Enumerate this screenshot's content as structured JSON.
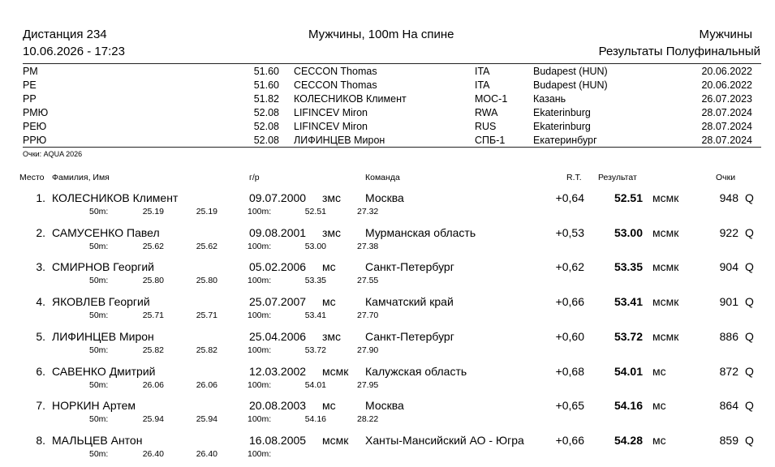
{
  "header": {
    "event": "Дистанция 234",
    "datetime": "10.06.2026 - 17:23",
    "title": "Мужчины, 100m На спине",
    "gender": "Мужчины",
    "round": "Результаты Полуфинальный"
  },
  "records": [
    {
      "code": "РМ",
      "time": "51.60",
      "name": "CECCON Thomas",
      "nat": "ITA",
      "place": "Budapest (HUN)",
      "date": "20.06.2022"
    },
    {
      "code": "РЕ",
      "time": "51.60",
      "name": "CECCON Thomas",
      "nat": "ITA",
      "place": "Budapest (HUN)",
      "date": "20.06.2022"
    },
    {
      "code": "РР",
      "time": "51.82",
      "name": "КОЛЕСНИКОВ Климент",
      "nat": "МОС-1",
      "place": "Казань",
      "date": "26.07.2023"
    },
    {
      "code": "РМЮ",
      "time": "52.08",
      "name": "LIFINCEV Miron",
      "nat": "RWA",
      "place": "Ekaterinburg",
      "date": "28.07.2024"
    },
    {
      "code": "РЕЮ",
      "time": "52.08",
      "name": "LIFINCEV Miron",
      "nat": "RUS",
      "place": "Ekaterinburg",
      "date": "28.07.2024"
    },
    {
      "code": "РРЮ",
      "time": "52.08",
      "name": "ЛИФИНЦЕВ Мирон",
      "nat": "СПБ-1",
      "place": "Екатеринбург",
      "date": "28.07.2024"
    }
  ],
  "points_note": "Очки: AQUA 2026",
  "columns": {
    "place": "Место",
    "name": "Фамилия, Имя",
    "birth": "г/р",
    "team": "Команда",
    "rt": "R.T.",
    "result": "Результат",
    "points": "Очки"
  },
  "results": [
    {
      "pos": "1.",
      "name": "КОЛЕСНИКОВ Климент",
      "birth": "09.07.2000",
      "rank": "змс",
      "team": "Москва",
      "rt": "+0,64",
      "result": "52.51",
      "rank2": "мсмк",
      "points": "948",
      "q": "Q",
      "s50_label": "50m:",
      "s50a": "25.19",
      "s50b": "25.19",
      "s100_label": "100m:",
      "s100a": "52.51",
      "s100b": "27.32"
    },
    {
      "pos": "2.",
      "name": "САМУСЕНКО Павел",
      "birth": "09.08.2001",
      "rank": "змс",
      "team": "Мурманская область",
      "rt": "+0,53",
      "result": "53.00",
      "rank2": "мсмк",
      "points": "922",
      "q": "Q",
      "s50_label": "50m:",
      "s50a": "25.62",
      "s50b": "25.62",
      "s100_label": "100m:",
      "s100a": "53.00",
      "s100b": "27.38"
    },
    {
      "pos": "3.",
      "name": "СМИРНОВ Георгий",
      "birth": "05.02.2006",
      "rank": "мс",
      "team": "Санкт-Петербург",
      "rt": "+0,62",
      "result": "53.35",
      "rank2": "мсмк",
      "points": "904",
      "q": "Q",
      "s50_label": "50m:",
      "s50a": "25.80",
      "s50b": "25.80",
      "s100_label": "100m:",
      "s100a": "53.35",
      "s100b": "27.55"
    },
    {
      "pos": "4.",
      "name": "ЯКОВЛЕВ Георгий",
      "birth": "25.07.2007",
      "rank": "мс",
      "team": "Камчатский край",
      "rt": "+0,66",
      "result": "53.41",
      "rank2": "мсмк",
      "points": "901",
      "q": "Q",
      "s50_label": "50m:",
      "s50a": "25.71",
      "s50b": "25.71",
      "s100_label": "100m:",
      "s100a": "53.41",
      "s100b": "27.70"
    },
    {
      "pos": "5.",
      "name": "ЛИФИНЦЕВ Мирон",
      "birth": "25.04.2006",
      "rank": "змс",
      "team": "Санкт-Петербург",
      "rt": "+0,60",
      "result": "53.72",
      "rank2": "мсмк",
      "points": "886",
      "q": "Q",
      "s50_label": "50m:",
      "s50a": "25.82",
      "s50b": "25.82",
      "s100_label": "100m:",
      "s100a": "53.72",
      "s100b": "27.90"
    },
    {
      "pos": "6.",
      "name": "САВЕНКО Дмитрий",
      "birth": "12.03.2002",
      "rank": "мсмк",
      "team": "Калужская область",
      "rt": "+0,68",
      "result": "54.01",
      "rank2": "мс",
      "points": "872",
      "q": "Q",
      "s50_label": "50m:",
      "s50a": "26.06",
      "s50b": "26.06",
      "s100_label": "100m:",
      "s100a": "54.01",
      "s100b": "27.95"
    },
    {
      "pos": "7.",
      "name": "НОРКИН Артем",
      "birth": "20.08.2003",
      "rank": "мс",
      "team": "Москва",
      "rt": "+0,65",
      "result": "54.16",
      "rank2": "мс",
      "points": "864",
      "q": "Q",
      "s50_label": "50m:",
      "s50a": "25.94",
      "s50b": "25.94",
      "s100_label": "100m:",
      "s100a": "54.16",
      "s100b": "28.22"
    },
    {
      "pos": "8.",
      "name": "МАЛЬЦЕВ Антон",
      "birth": "16.08.2005",
      "rank": "мсмк",
      "team": "Ханты-Мансийский АО - Югра",
      "rt": "+0,66",
      "result": "54.28",
      "rank2": "мс",
      "points": "859",
      "q": "Q",
      "s50_label": "50m:",
      "s50a": "26.40",
      "s50b": "26.40",
      "s100_label": "100m:",
      "s100a": "",
      "s100b": ""
    }
  ]
}
